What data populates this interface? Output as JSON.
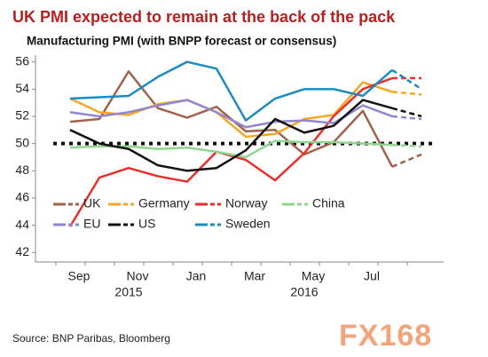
{
  "chart_data": {
    "type": "line",
    "title": "UK PMI expected to remain at the back of the pack",
    "subtitle": "Manufacturing PMI (with BNPP forecast or consensus)",
    "categories": [
      null,
      "Sep",
      null,
      "Nov",
      null,
      "Jan",
      null,
      "Mar",
      null,
      "May",
      null,
      "Jul",
      null
    ],
    "category_years": [
      null,
      null,
      null,
      "2015",
      null,
      null,
      null,
      null,
      null,
      "2016",
      null,
      null,
      null
    ],
    "ylim": [
      41.3,
      56.5
    ],
    "yticks": [
      42,
      44,
      46,
      48,
      50,
      52,
      54,
      56
    ],
    "reference_line": 50,
    "dashed_last_segment": true,
    "series": [
      {
        "name": "UK",
        "color": "#a0624a",
        "values": [
          51.6,
          51.8,
          55.3,
          52.6,
          51.9,
          52.7,
          50.9,
          51.0,
          49.2,
          50.1,
          52.4,
          48.3,
          49.2
        ]
      },
      {
        "name": "Germany",
        "color": "#f5a623",
        "values": [
          53.3,
          52.3,
          52.1,
          52.9,
          53.2,
          52.3,
          50.5,
          50.7,
          51.8,
          52.1,
          54.5,
          53.8,
          53.6
        ]
      },
      {
        "name": "Norway",
        "color": "#e8302a",
        "values": [
          43.9,
          47.5,
          48.2,
          47.6,
          47.2,
          49.4,
          48.8,
          47.3,
          49.3,
          52.0,
          54.0,
          54.8,
          54.8
        ]
      },
      {
        "name": "China",
        "color": "#8fd48f",
        "values": [
          49.7,
          49.8,
          49.8,
          49.6,
          49.7,
          49.4,
          49.0,
          50.2,
          50.1,
          50.1,
          50.0,
          49.9,
          49.8
        ]
      },
      {
        "name": "EU",
        "color": "#9386cf",
        "values": [
          52.3,
          52.0,
          52.3,
          52.8,
          53.2,
          52.3,
          51.2,
          51.6,
          51.7,
          51.5,
          52.8,
          52.0,
          51.8
        ]
      },
      {
        "name": "US",
        "color": "#111111",
        "values": [
          51.0,
          50.0,
          49.6,
          48.4,
          48.0,
          48.2,
          49.5,
          51.8,
          50.8,
          51.3,
          53.2,
          52.6,
          52.0
        ]
      },
      {
        "name": "Sweden",
        "color": "#1f8ac0",
        "values": [
          53.3,
          53.4,
          53.5,
          54.9,
          56.0,
          55.5,
          51.7,
          53.3,
          54.0,
          54.0,
          53.5,
          55.4,
          54.0
        ]
      }
    ],
    "source": "Source:  BNP Paribas, Bloomberg",
    "watermark": "FX168"
  }
}
